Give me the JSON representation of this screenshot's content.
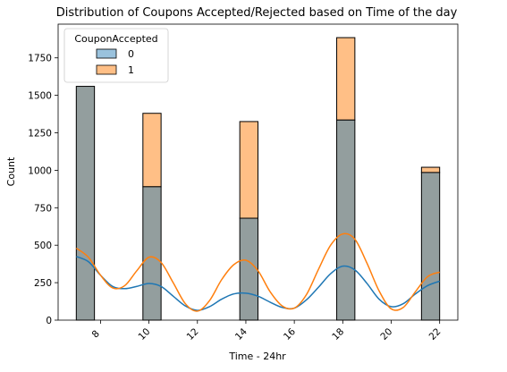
{
  "chart_data": {
    "type": "histogram",
    "title": "Distribution of Coupons Accepted/Rejected based on Time of the day",
    "xlabel": "Time - 24hr",
    "ylabel": "Count",
    "xlim": [
      6.25,
      22.75
    ],
    "ylim": [
      0,
      1975
    ],
    "x_ticks": [
      8,
      10,
      12,
      14,
      16,
      18,
      20,
      22
    ],
    "y_ticks": [
      0,
      250,
      500,
      750,
      1000,
      1250,
      1500,
      1750
    ],
    "x_tick_labels": [
      "8",
      "10",
      "12",
      "14",
      "16",
      "18",
      "20",
      "22"
    ],
    "y_tick_labels": [
      "0",
      "250",
      "500",
      "750",
      "1000",
      "1250",
      "1500",
      "1750"
    ],
    "stacked": true,
    "bins": [
      {
        "x0": 7.0,
        "x1": 7.75
      },
      {
        "x0": 9.75,
        "x1": 10.5
      },
      {
        "x0": 13.75,
        "x1": 14.5
      },
      {
        "x0": 17.75,
        "x1": 18.5
      },
      {
        "x0": 21.25,
        "x1": 22.0
      }
    ],
    "legend": {
      "title": "CouponAccepted",
      "placement": "upper left"
    },
    "series": [
      {
        "name": "0",
        "color": "#1f77b4",
        "values": [
          1560,
          890,
          680,
          1335,
          985
        ]
      },
      {
        "name": "1",
        "color": "#ff7f0e",
        "values": [
          0,
          490,
          645,
          550,
          35
        ]
      }
    ],
    "kde": [
      {
        "name": "0",
        "color": "#1f77b4",
        "x": [
          7.0,
          7.5,
          8.0,
          8.5,
          9.0,
          9.5,
          10.0,
          10.5,
          11.0,
          11.5,
          12.0,
          12.5,
          13.0,
          13.5,
          14.0,
          14.5,
          15.0,
          15.5,
          16.0,
          16.5,
          17.0,
          17.5,
          18.0,
          18.5,
          19.0,
          19.5,
          20.0,
          20.5,
          21.0,
          21.5,
          22.0
        ],
        "y": [
          425,
          390,
          300,
          225,
          210,
          225,
          245,
          225,
          160,
          95,
          65,
          90,
          140,
          175,
          180,
          160,
          120,
          85,
          80,
          135,
          220,
          310,
          360,
          335,
          245,
          140,
          90,
          110,
          175,
          230,
          260
        ]
      },
      {
        "name": "1",
        "color": "#ff7f0e",
        "x": [
          7.0,
          7.5,
          8.0,
          8.5,
          9.0,
          9.5,
          10.0,
          10.5,
          11.0,
          11.5,
          12.0,
          12.5,
          13.0,
          13.5,
          14.0,
          14.5,
          15.0,
          15.5,
          16.0,
          16.5,
          17.0,
          17.5,
          18.0,
          18.5,
          19.0,
          19.5,
          20.0,
          20.5,
          21.0,
          21.5,
          22.0
        ],
        "y": [
          480,
          420,
          300,
          215,
          230,
          330,
          420,
          385,
          250,
          110,
          60,
          130,
          270,
          370,
          400,
          330,
          190,
          95,
          80,
          170,
          340,
          500,
          575,
          540,
          380,
          195,
          75,
          85,
          190,
          290,
          320
        ]
      }
    ]
  }
}
